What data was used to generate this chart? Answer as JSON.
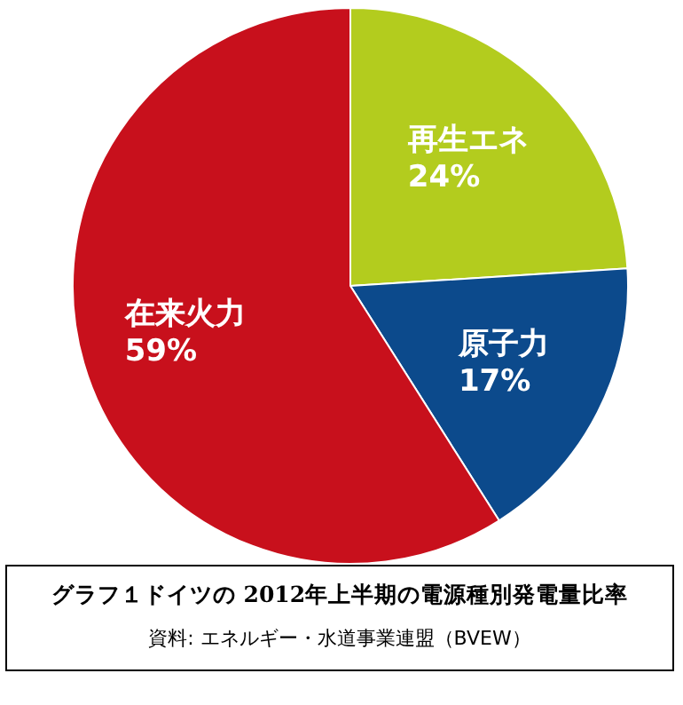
{
  "chart_data": {
    "type": "pie",
    "title": "グラフ１ドイツの 2012年上半期の電源種別発電量比率",
    "annotations": [
      "資料: エネルギー・水道事業連盟（BVEW）"
    ],
    "categories": [
      "再生エネ",
      "原子力",
      "在来火力"
    ],
    "values": [
      24,
      17,
      59
    ],
    "value_labels": [
      "24%",
      "17%",
      "59%"
    ],
    "colors": [
      "#b3cc1e",
      "#0c4a8c",
      "#c8101c"
    ],
    "legend": false
  }
}
